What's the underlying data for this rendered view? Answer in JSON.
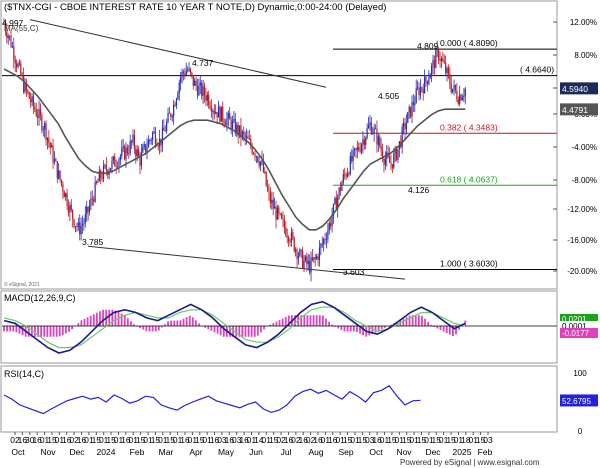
{
  "header": {
    "title": "($TNX-CGI - CBOE INTEREST RATE 10 YEAR T NOTE,D) Dynamic,0:00-24:00 (Delayed)",
    "sma_label": "MA(55,C)"
  },
  "chart_data": [
    {
      "type": "candlestick",
      "title": "($TNX-CGI - CBOE INTEREST RATE 10 YEAR T NOTE,D) Dynamic,0:00-24:00 (Delayed)",
      "y_axis_ticks": [
        "12.00%",
        "8.00%",
        "4.00%",
        "0.00%",
        "-4.00%",
        "-8.00%",
        "-12.00%",
        "-16.00%",
        "-20.00%"
      ],
      "ylim": [
        3.6,
        4.99
      ],
      "last_price_label": "4.5940",
      "ma_label": "4.4791",
      "ohlc_close": [
        4.95,
        4.85,
        4.72,
        4.6,
        4.52,
        4.45,
        4.38,
        4.25,
        4.12,
        4.02,
        3.9,
        3.82,
        3.88,
        3.99,
        4.1,
        4.15,
        4.18,
        4.22,
        4.25,
        4.3,
        4.2,
        4.28,
        4.35,
        4.3,
        4.4,
        4.5,
        4.66,
        4.7,
        4.62,
        4.58,
        4.55,
        4.48,
        4.45,
        4.42,
        4.38,
        4.34,
        4.3,
        4.25,
        4.18,
        4.0,
        3.92,
        3.85,
        3.8,
        3.72,
        3.65,
        3.62,
        3.66,
        3.75,
        3.85,
        3.98,
        4.1,
        4.18,
        4.25,
        4.32,
        4.4,
        4.32,
        4.22,
        4.18,
        4.25,
        4.38,
        4.48,
        4.58,
        4.62,
        4.7,
        4.79,
        4.7,
        4.6,
        4.55,
        4.59
      ],
      "ma_values": [
        4.7,
        4.68,
        4.66,
        4.63,
        4.59,
        4.55,
        4.5,
        4.45,
        4.4,
        4.33,
        4.27,
        4.21,
        4.17,
        4.14,
        4.13,
        4.13,
        4.14,
        4.16,
        4.18,
        4.2,
        4.22,
        4.24,
        4.27,
        4.3,
        4.33,
        4.36,
        4.39,
        4.41,
        4.42,
        4.42,
        4.42,
        4.41,
        4.4,
        4.38,
        4.36,
        4.33,
        4.3,
        4.26,
        4.21,
        4.15,
        4.08,
        4.01,
        3.95,
        3.89,
        3.85,
        3.82,
        3.82,
        3.84,
        3.88,
        3.93,
        3.99,
        4.04,
        4.09,
        4.14,
        4.18,
        4.2,
        4.22,
        4.24,
        4.27,
        4.31,
        4.35,
        4.39,
        4.42,
        4.45,
        4.47,
        4.48,
        4.48,
        4.48,
        4.48
      ],
      "annotations": [
        "4.997",
        "4.737",
        "3.785",
        "3.603",
        "4.505",
        "4.126",
        "4.809"
      ],
      "fib_levels": [
        {
          "label": "0.000 ( 4.8090)",
          "value": 4.809
        },
        {
          "label": "( 4.6640)",
          "value": 4.664
        },
        {
          "label": "0.382 ( 4.3483)",
          "value": 4.3483
        },
        {
          "label": "0.618 ( 4.0637)",
          "value": 4.0637
        },
        {
          "label": "1.000 ( 3.6030)",
          "value": 3.603
        }
      ],
      "x_tick_labels": [
        "02",
        "16",
        "30",
        "16",
        "01",
        "15",
        "01",
        "16",
        "02",
        "16",
        "01",
        "15",
        "01",
        "15",
        "01",
        "16",
        "01",
        "15",
        "01",
        "15",
        "01",
        "15",
        "01",
        "16",
        "01",
        "15",
        "01",
        "16",
        "03",
        "16",
        "03",
        "16",
        "01",
        "14",
        "01",
        "15",
        "02",
        "16",
        "02",
        "16",
        "02",
        "16",
        "01",
        "16",
        "01",
        "15",
        "01",
        "15",
        "03",
        "16",
        "01",
        "15",
        "01",
        "15",
        "01",
        "15",
        "01",
        "15",
        "01",
        "15",
        "01",
        "18",
        "01",
        "15",
        "03"
      ],
      "x_month_labels": [
        "Oct",
        "Nov",
        "Dec",
        "2024",
        "Feb",
        "Mar",
        "Apr",
        "May",
        "Jun",
        "Jul",
        "Aug",
        "Sep",
        "Oct",
        "Nov",
        "Dec",
        "2025",
        "Feb"
      ],
      "copyright": "© eSignal, 2021"
    },
    {
      "type": "line",
      "title": "MACD(12,26,9,C)",
      "value_labels": [
        "0.0201",
        "0.0001",
        "-0.0177"
      ],
      "macd": [
        0.02,
        0.01,
        -0.02,
        -0.05,
        -0.08,
        -0.1,
        -0.09,
        -0.06,
        -0.02,
        0.02,
        0.05,
        0.06,
        0.05,
        0.03,
        0.02,
        0.04,
        0.06,
        0.08,
        0.06,
        0.03,
        -0.01,
        -0.04,
        -0.07,
        -0.08,
        -0.06,
        -0.03,
        0.01,
        0.05,
        0.08,
        0.09,
        0.07,
        0.04,
        0.01,
        -0.02,
        -0.03,
        -0.01,
        0.02,
        0.05,
        0.07,
        0.05,
        0.02,
        -0.01,
        0.01
      ],
      "signal": [
        0.03,
        0.02,
        0.0,
        -0.03,
        -0.06,
        -0.08,
        -0.08,
        -0.07,
        -0.04,
        -0.01,
        0.02,
        0.04,
        0.05,
        0.04,
        0.03,
        0.03,
        0.05,
        0.06,
        0.06,
        0.04,
        0.01,
        -0.02,
        -0.05,
        -0.06,
        -0.06,
        -0.04,
        -0.01,
        0.03,
        0.06,
        0.07,
        0.07,
        0.05,
        0.02,
        0.0,
        -0.02,
        -0.01,
        0.01,
        0.03,
        0.05,
        0.05,
        0.03,
        0.01,
        0.0
      ]
    },
    {
      "type": "line",
      "title": "RSI(14,C)",
      "y_axis_ticks": [
        "100",
        "50",
        "0"
      ],
      "value_label": "52.6795",
      "values": [
        62,
        55,
        45,
        40,
        35,
        30,
        38,
        45,
        52,
        56,
        60,
        55,
        58,
        50,
        62,
        56,
        48,
        52,
        60,
        58,
        45,
        40,
        36,
        44,
        50,
        55,
        60,
        52,
        48,
        44,
        40,
        46,
        50,
        38,
        32,
        36,
        45,
        60,
        68,
        72,
        65,
        70,
        62,
        55,
        68,
        60,
        50,
        66,
        70,
        78,
        60,
        45,
        52,
        53
      ]
    }
  ],
  "footer": {
    "powered_by": "Powered by eSignal | www.esignal.com"
  },
  "colors": {
    "up": "#1f2fbf",
    "down": "#c0191f",
    "ma": "#555555",
    "fib_green": "#1aa31a",
    "fib_red": "#c0191f",
    "macd_line": "#1a1a8a",
    "signal_line": "#66cc66",
    "hist": "#e040c0",
    "rsi": "#2222dd",
    "badge": "#1b2a5a"
  }
}
